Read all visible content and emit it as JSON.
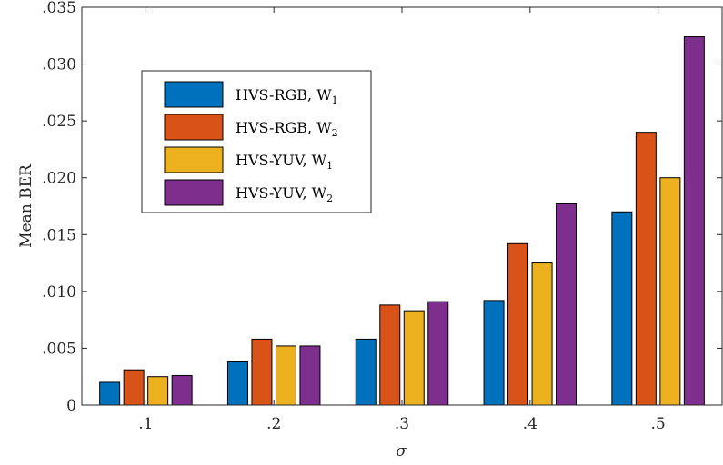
{
  "chart_data": {
    "type": "bar",
    "categories": [
      ".1",
      ".2",
      ".3",
      ".4",
      ".5"
    ],
    "series": [
      {
        "name": "HVS-RGB, W",
        "subscript": "1",
        "color": "#0072BD",
        "values": [
          0.002,
          0.0038,
          0.0058,
          0.0092,
          0.017
        ]
      },
      {
        "name": "HVS-RGB, W",
        "subscript": "2",
        "color": "#D95319",
        "values": [
          0.0031,
          0.0058,
          0.0088,
          0.0142,
          0.024
        ]
      },
      {
        "name": "HVS-YUV, W",
        "subscript": "1",
        "color": "#EDB120",
        "values": [
          0.0025,
          0.0052,
          0.0083,
          0.0125,
          0.02
        ]
      },
      {
        "name": "HVS-YUV, W",
        "subscript": "2",
        "color": "#7E2F8E",
        "values": [
          0.0026,
          0.0052,
          0.0091,
          0.0177,
          0.0324
        ]
      }
    ],
    "xlabel": "σ",
    "ylabel": "Mean BER",
    "ylim": [
      0,
      0.035
    ],
    "yticks": [
      0,
      0.005,
      0.01,
      0.015,
      0.02,
      0.025,
      0.03,
      0.035
    ],
    "ytick_labels": [
      "0",
      ".005",
      ".010",
      ".015",
      ".020",
      ".025",
      ".030",
      ".035"
    ],
    "grid": false,
    "legend_position": "top-left"
  }
}
